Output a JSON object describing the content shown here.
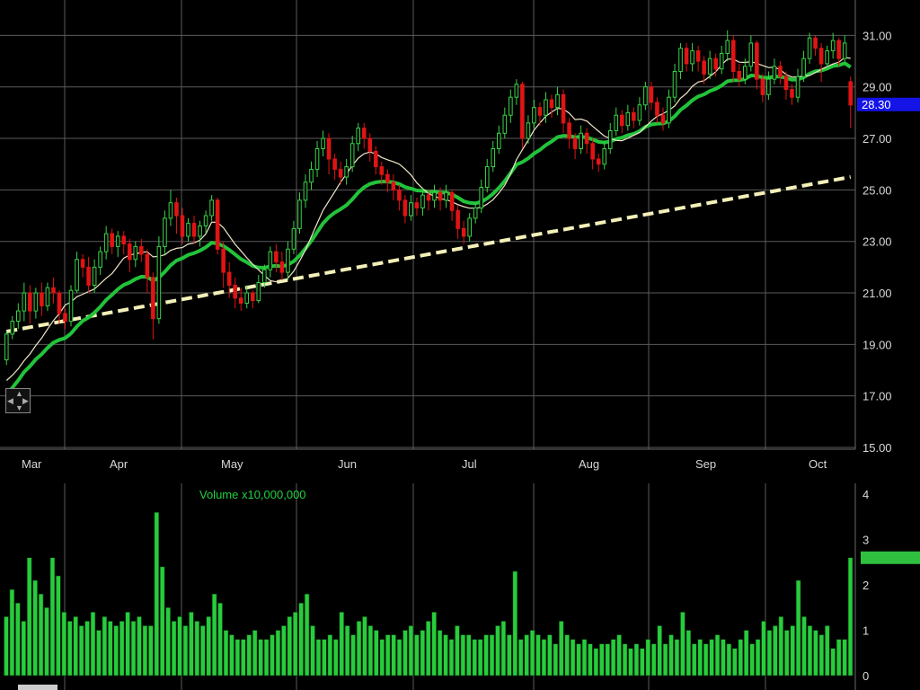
{
  "chart_data": {
    "type": "candlestick",
    "price_panel": {
      "y_ticks": [
        "31.00",
        "29.00",
        "27.00",
        "25.00",
        "23.00",
        "21.00",
        "19.00",
        "17.00",
        "15.00"
      ],
      "y_tick_values": [
        31,
        29,
        27,
        25,
        23,
        21,
        19,
        17,
        15
      ],
      "ylim": [
        15,
        32.2
      ],
      "x_labels": [
        "Mar",
        "Apr",
        "May",
        "Jun",
        "Jul",
        "Aug",
        "Sep",
        "Oct"
      ],
      "last_price_label": "28.30",
      "last_price": 28.3,
      "grid": true,
      "candles": [
        [
          18.4,
          19.4,
          18.2,
          19.5
        ],
        [
          19.4,
          19.9,
          19.2,
          20.1
        ],
        [
          19.9,
          20.3,
          19.6,
          20.6
        ],
        [
          20.3,
          21.0,
          19.9,
          21.4
        ],
        [
          21.0,
          20.3,
          19.8,
          21.3
        ],
        [
          20.3,
          21.0,
          20.0,
          21.2
        ],
        [
          21.0,
          20.5,
          20.1,
          21.4
        ],
        [
          20.5,
          21.2,
          20.3,
          21.4
        ],
        [
          21.2,
          21.0,
          20.6,
          21.6
        ],
        [
          21.0,
          20.2,
          19.8,
          21.1
        ],
        [
          20.2,
          19.9,
          19.6,
          20.4
        ],
        [
          19.9,
          21.1,
          19.7,
          21.3
        ],
        [
          21.1,
          22.3,
          21.0,
          22.6
        ],
        [
          22.3,
          22.0,
          21.6,
          22.5
        ],
        [
          22.0,
          21.3,
          21.0,
          22.4
        ],
        [
          21.3,
          22.0,
          21.0,
          22.3
        ],
        [
          22.0,
          22.6,
          21.7,
          22.8
        ],
        [
          22.6,
          23.3,
          22.3,
          23.6
        ],
        [
          23.3,
          22.8,
          22.5,
          23.5
        ],
        [
          22.8,
          23.2,
          22.4,
          23.4
        ],
        [
          23.2,
          22.9,
          22.5,
          23.4
        ],
        [
          22.9,
          22.3,
          21.8,
          23.1
        ],
        [
          22.3,
          22.8,
          22.0,
          23.0
        ],
        [
          22.8,
          22.5,
          22.2,
          23.1
        ],
        [
          22.5,
          21.6,
          21.0,
          22.7
        ],
        [
          21.6,
          20.0,
          19.2,
          21.8
        ],
        [
          20.0,
          22.8,
          19.8,
          23.2
        ],
        [
          22.8,
          23.9,
          22.5,
          24.2
        ],
        [
          23.9,
          24.5,
          23.6,
          25.0
        ],
        [
          24.5,
          24.0,
          23.3,
          24.7
        ],
        [
          24.0,
          23.2,
          22.9,
          24.3
        ],
        [
          23.2,
          23.7,
          23.0,
          23.9
        ],
        [
          23.7,
          23.2,
          22.9,
          24.0
        ],
        [
          23.2,
          23.6,
          22.8,
          23.8
        ],
        [
          23.6,
          24.0,
          23.3,
          24.2
        ],
        [
          24.0,
          24.6,
          23.8,
          24.8
        ],
        [
          24.6,
          22.7,
          22.5,
          24.7
        ],
        [
          22.7,
          21.8,
          21.2,
          23.0
        ],
        [
          21.8,
          21.3,
          20.8,
          22.2
        ],
        [
          21.3,
          20.8,
          20.4,
          21.6
        ],
        [
          20.8,
          20.6,
          20.3,
          21.2
        ],
        [
          20.6,
          21.0,
          20.4,
          21.3
        ],
        [
          21.0,
          20.7,
          20.4,
          21.1
        ],
        [
          20.7,
          21.4,
          20.6,
          21.7
        ],
        [
          21.4,
          21.9,
          21.2,
          22.1
        ],
        [
          21.9,
          22.6,
          21.6,
          22.8
        ],
        [
          22.6,
          22.2,
          21.8,
          22.9
        ],
        [
          22.2,
          21.8,
          21.5,
          22.6
        ],
        [
          21.8,
          22.7,
          21.5,
          23.0
        ],
        [
          22.7,
          23.5,
          22.5,
          23.8
        ],
        [
          23.5,
          24.6,
          23.3,
          24.9
        ],
        [
          24.6,
          25.3,
          24.3,
          25.6
        ],
        [
          25.3,
          25.8,
          25.0,
          26.1
        ],
        [
          25.8,
          26.6,
          25.5,
          26.9
        ],
        [
          26.6,
          27.0,
          26.3,
          27.3
        ],
        [
          27.0,
          26.2,
          25.6,
          27.2
        ],
        [
          26.2,
          25.8,
          25.4,
          26.4
        ],
        [
          25.8,
          25.5,
          25.2,
          26.1
        ],
        [
          25.5,
          25.9,
          25.2,
          26.2
        ],
        [
          25.9,
          26.8,
          25.7,
          27.1
        ],
        [
          26.8,
          27.4,
          26.5,
          27.6
        ],
        [
          27.4,
          27.0,
          26.6,
          27.6
        ],
        [
          27.0,
          26.5,
          26.1,
          27.2
        ],
        [
          26.5,
          25.9,
          25.6,
          26.7
        ],
        [
          25.9,
          25.6,
          25.2,
          26.1
        ],
        [
          25.6,
          25.3,
          24.9,
          25.8
        ],
        [
          25.3,
          25.0,
          24.6,
          25.6
        ],
        [
          25.0,
          24.6,
          24.2,
          25.2
        ],
        [
          24.6,
          24.0,
          23.7,
          24.8
        ],
        [
          24.0,
          24.5,
          23.8,
          24.8
        ],
        [
          24.5,
          24.3,
          24.0,
          24.7
        ],
        [
          24.3,
          24.8,
          24.0,
          25.1
        ],
        [
          24.8,
          24.6,
          24.2,
          25.0
        ],
        [
          24.6,
          24.9,
          24.3,
          25.2
        ],
        [
          24.9,
          24.6,
          24.2,
          25.1
        ],
        [
          24.6,
          24.9,
          24.3,
          25.2
        ],
        [
          24.9,
          24.2,
          23.8,
          25.0
        ],
        [
          24.2,
          23.5,
          23.1,
          24.4
        ],
        [
          23.5,
          23.2,
          22.9,
          23.8
        ],
        [
          23.2,
          23.9,
          23.0,
          24.1
        ],
        [
          23.9,
          24.3,
          23.7,
          24.5
        ],
        [
          24.3,
          25.1,
          24.1,
          25.4
        ],
        [
          25.1,
          25.9,
          24.9,
          26.2
        ],
        [
          25.9,
          26.6,
          25.7,
          26.9
        ],
        [
          26.6,
          27.2,
          26.4,
          27.5
        ],
        [
          27.2,
          27.9,
          27.0,
          28.2
        ],
        [
          27.9,
          28.6,
          27.6,
          28.9
        ],
        [
          28.6,
          29.1,
          28.3,
          29.3
        ],
        [
          29.1,
          27.0,
          26.6,
          29.2
        ],
        [
          27.0,
          27.6,
          26.8,
          27.9
        ],
        [
          27.6,
          28.2,
          27.4,
          28.5
        ],
        [
          28.2,
          27.9,
          27.5,
          28.4
        ],
        [
          27.9,
          28.5,
          27.6,
          28.8
        ],
        [
          28.5,
          28.2,
          27.8,
          28.7
        ],
        [
          28.2,
          28.7,
          27.9,
          29.0
        ],
        [
          28.7,
          27.6,
          27.2,
          28.9
        ],
        [
          27.6,
          27.0,
          26.6,
          27.8
        ],
        [
          27.0,
          26.6,
          26.2,
          27.2
        ],
        [
          26.6,
          27.2,
          26.4,
          27.5
        ],
        [
          27.2,
          26.8,
          26.4,
          27.4
        ],
        [
          26.8,
          26.2,
          25.8,
          27.0
        ],
        [
          26.2,
          26.0,
          25.7,
          26.4
        ],
        [
          26.0,
          26.6,
          25.8,
          26.9
        ],
        [
          26.6,
          27.3,
          26.4,
          27.6
        ],
        [
          27.3,
          27.9,
          27.1,
          28.2
        ],
        [
          27.9,
          27.5,
          27.2,
          28.1
        ],
        [
          27.5,
          28.0,
          27.3,
          28.3
        ],
        [
          28.0,
          27.7,
          27.4,
          28.2
        ],
        [
          27.7,
          28.3,
          27.5,
          28.6
        ],
        [
          28.3,
          29.0,
          28.1,
          29.2
        ],
        [
          29.0,
          28.4,
          28.1,
          29.2
        ],
        [
          28.4,
          27.9,
          27.6,
          28.6
        ],
        [
          27.9,
          27.6,
          27.3,
          28.2
        ],
        [
          27.6,
          28.6,
          27.4,
          28.9
        ],
        [
          28.6,
          29.6,
          28.4,
          29.9
        ],
        [
          29.6,
          30.5,
          29.3,
          30.7
        ],
        [
          30.5,
          29.9,
          29.6,
          30.7
        ],
        [
          29.9,
          30.4,
          29.6,
          30.7
        ],
        [
          30.4,
          30.0,
          29.6,
          30.6
        ],
        [
          30.0,
          29.5,
          29.1,
          30.2
        ],
        [
          29.5,
          30.1,
          29.3,
          30.4
        ],
        [
          30.1,
          29.7,
          29.4,
          30.3
        ],
        [
          29.7,
          30.3,
          29.5,
          30.6
        ],
        [
          30.3,
          30.8,
          30.0,
          31.2
        ],
        [
          30.8,
          29.6,
          29.2,
          31.0
        ],
        [
          29.6,
          29.3,
          29.0,
          29.9
        ],
        [
          29.3,
          29.8,
          29.1,
          30.1
        ],
        [
          29.8,
          30.7,
          29.6,
          31.0
        ],
        [
          30.7,
          29.3,
          28.9,
          30.8
        ],
        [
          29.3,
          28.7,
          28.4,
          29.5
        ],
        [
          28.7,
          29.3,
          28.5,
          29.6
        ],
        [
          29.3,
          29.8,
          29.1,
          30.1
        ],
        [
          29.8,
          29.4,
          29.1,
          30.0
        ],
        [
          29.4,
          28.9,
          28.5,
          29.6
        ],
        [
          28.9,
          28.6,
          28.3,
          29.1
        ],
        [
          28.6,
          29.4,
          28.4,
          29.7
        ],
        [
          29.4,
          30.1,
          29.2,
          30.4
        ],
        [
          30.1,
          30.9,
          29.9,
          31.1
        ],
        [
          30.9,
          30.5,
          30.2,
          31.0
        ],
        [
          30.5,
          29.9,
          29.2,
          30.7
        ],
        [
          29.9,
          30.4,
          29.7,
          30.6
        ],
        [
          30.4,
          30.8,
          30.1,
          31.1
        ],
        [
          30.8,
          30.1,
          29.8,
          30.9
        ],
        [
          30.1,
          30.7,
          30.0,
          31.0
        ],
        [
          29.2,
          28.3,
          27.4,
          29.4
        ]
      ]
    },
    "volume_panel": {
      "label": "Volume x10,000,000",
      "y_ticks": [
        "4",
        "3",
        "2",
        "1",
        "0"
      ],
      "y_tick_values": [
        4,
        3,
        2,
        1,
        0
      ],
      "ylim": [
        0,
        4.2
      ],
      "last_volume": 2.6,
      "values": [
        1.3,
        1.9,
        1.6,
        1.2,
        2.6,
        2.1,
        1.8,
        1.5,
        2.6,
        2.2,
        1.4,
        1.2,
        1.3,
        1.1,
        1.2,
        1.4,
        1.0,
        1.3,
        1.2,
        1.1,
        1.2,
        1.4,
        1.2,
        1.3,
        1.1,
        1.1,
        3.6,
        2.4,
        1.5,
        1.2,
        1.3,
        1.1,
        1.4,
        1.2,
        1.1,
        1.3,
        1.8,
        1.6,
        1.0,
        0.9,
        0.8,
        0.8,
        0.9,
        1.0,
        0.8,
        0.8,
        0.9,
        1.0,
        1.1,
        1.3,
        1.4,
        1.6,
        1.8,
        1.1,
        0.8,
        0.8,
        0.9,
        0.8,
        1.4,
        1.1,
        0.9,
        1.2,
        1.3,
        1.1,
        1.0,
        0.8,
        0.9,
        0.9,
        0.8,
        1.0,
        1.1,
        0.9,
        1.0,
        1.2,
        1.4,
        1.0,
        0.9,
        0.8,
        1.1,
        0.9,
        0.9,
        0.8,
        0.8,
        0.9,
        0.9,
        1.1,
        1.2,
        0.9,
        2.3,
        0.8,
        0.9,
        1.0,
        0.9,
        0.8,
        0.9,
        0.7,
        1.2,
        0.9,
        0.8,
        0.7,
        0.8,
        0.7,
        0.6,
        0.7,
        0.7,
        0.8,
        0.9,
        0.7,
        0.6,
        0.7,
        0.6,
        0.8,
        0.7,
        1.1,
        0.7,
        0.9,
        0.8,
        1.4,
        1.0,
        0.7,
        0.8,
        0.7,
        0.8,
        0.9,
        0.8,
        0.7,
        0.6,
        0.8,
        1.0,
        0.7,
        0.8,
        1.2,
        1.0,
        1.1,
        1.3,
        1.0,
        1.1,
        2.1,
        1.3,
        1.1,
        1.0,
        0.9,
        1.1,
        0.6,
        0.8,
        0.8,
        2.6
      ]
    }
  }
}
